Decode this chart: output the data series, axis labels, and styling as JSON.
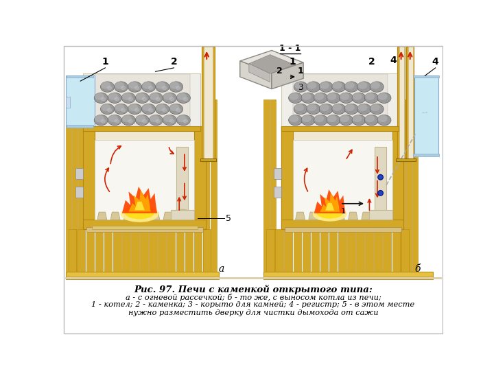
{
  "bg_color": "#ffffff",
  "border_color": "#cccccc",
  "title_line1": "Рис. 97. Печи с каменкой открытого типа:",
  "title_line2": "а - с огневой рассечкой; б - то же, с выносом котла из печи;",
  "title_line3": "1 - котел; 2 - каменка; 3 - корыто для камней; 4 - регистр; 5 - в этом месте",
  "title_line4": "нужно разместить дверку для чистки дымохода от сажи",
  "wood_color": "#D4A827",
  "wood_dark": "#B8860B",
  "wood_light": "#E8C84A",
  "firebox_bg": "#F8F4EE",
  "firebox_inner": "#FFFFFF",
  "stone_color": "#999999",
  "stone_dark": "#666666",
  "stone_light": "#BBBBBB",
  "water_color": "#C8E8F4",
  "water_dark": "#90C8E0",
  "pipe_color": "#E0D8C0",
  "pipe_dark": "#C0B890",
  "arrow_red": "#CC2200",
  "arrow_black": "#111111",
  "fire_red": "#DD2200",
  "fire_orange": "#FF5500",
  "fire_yellow": "#FFCC00",
  "fire_glow": "#FFEE88",
  "blue_dot": "#2244BB",
  "label_a": "a",
  "label_b": "б",
  "label_1_1": "1 - 1"
}
